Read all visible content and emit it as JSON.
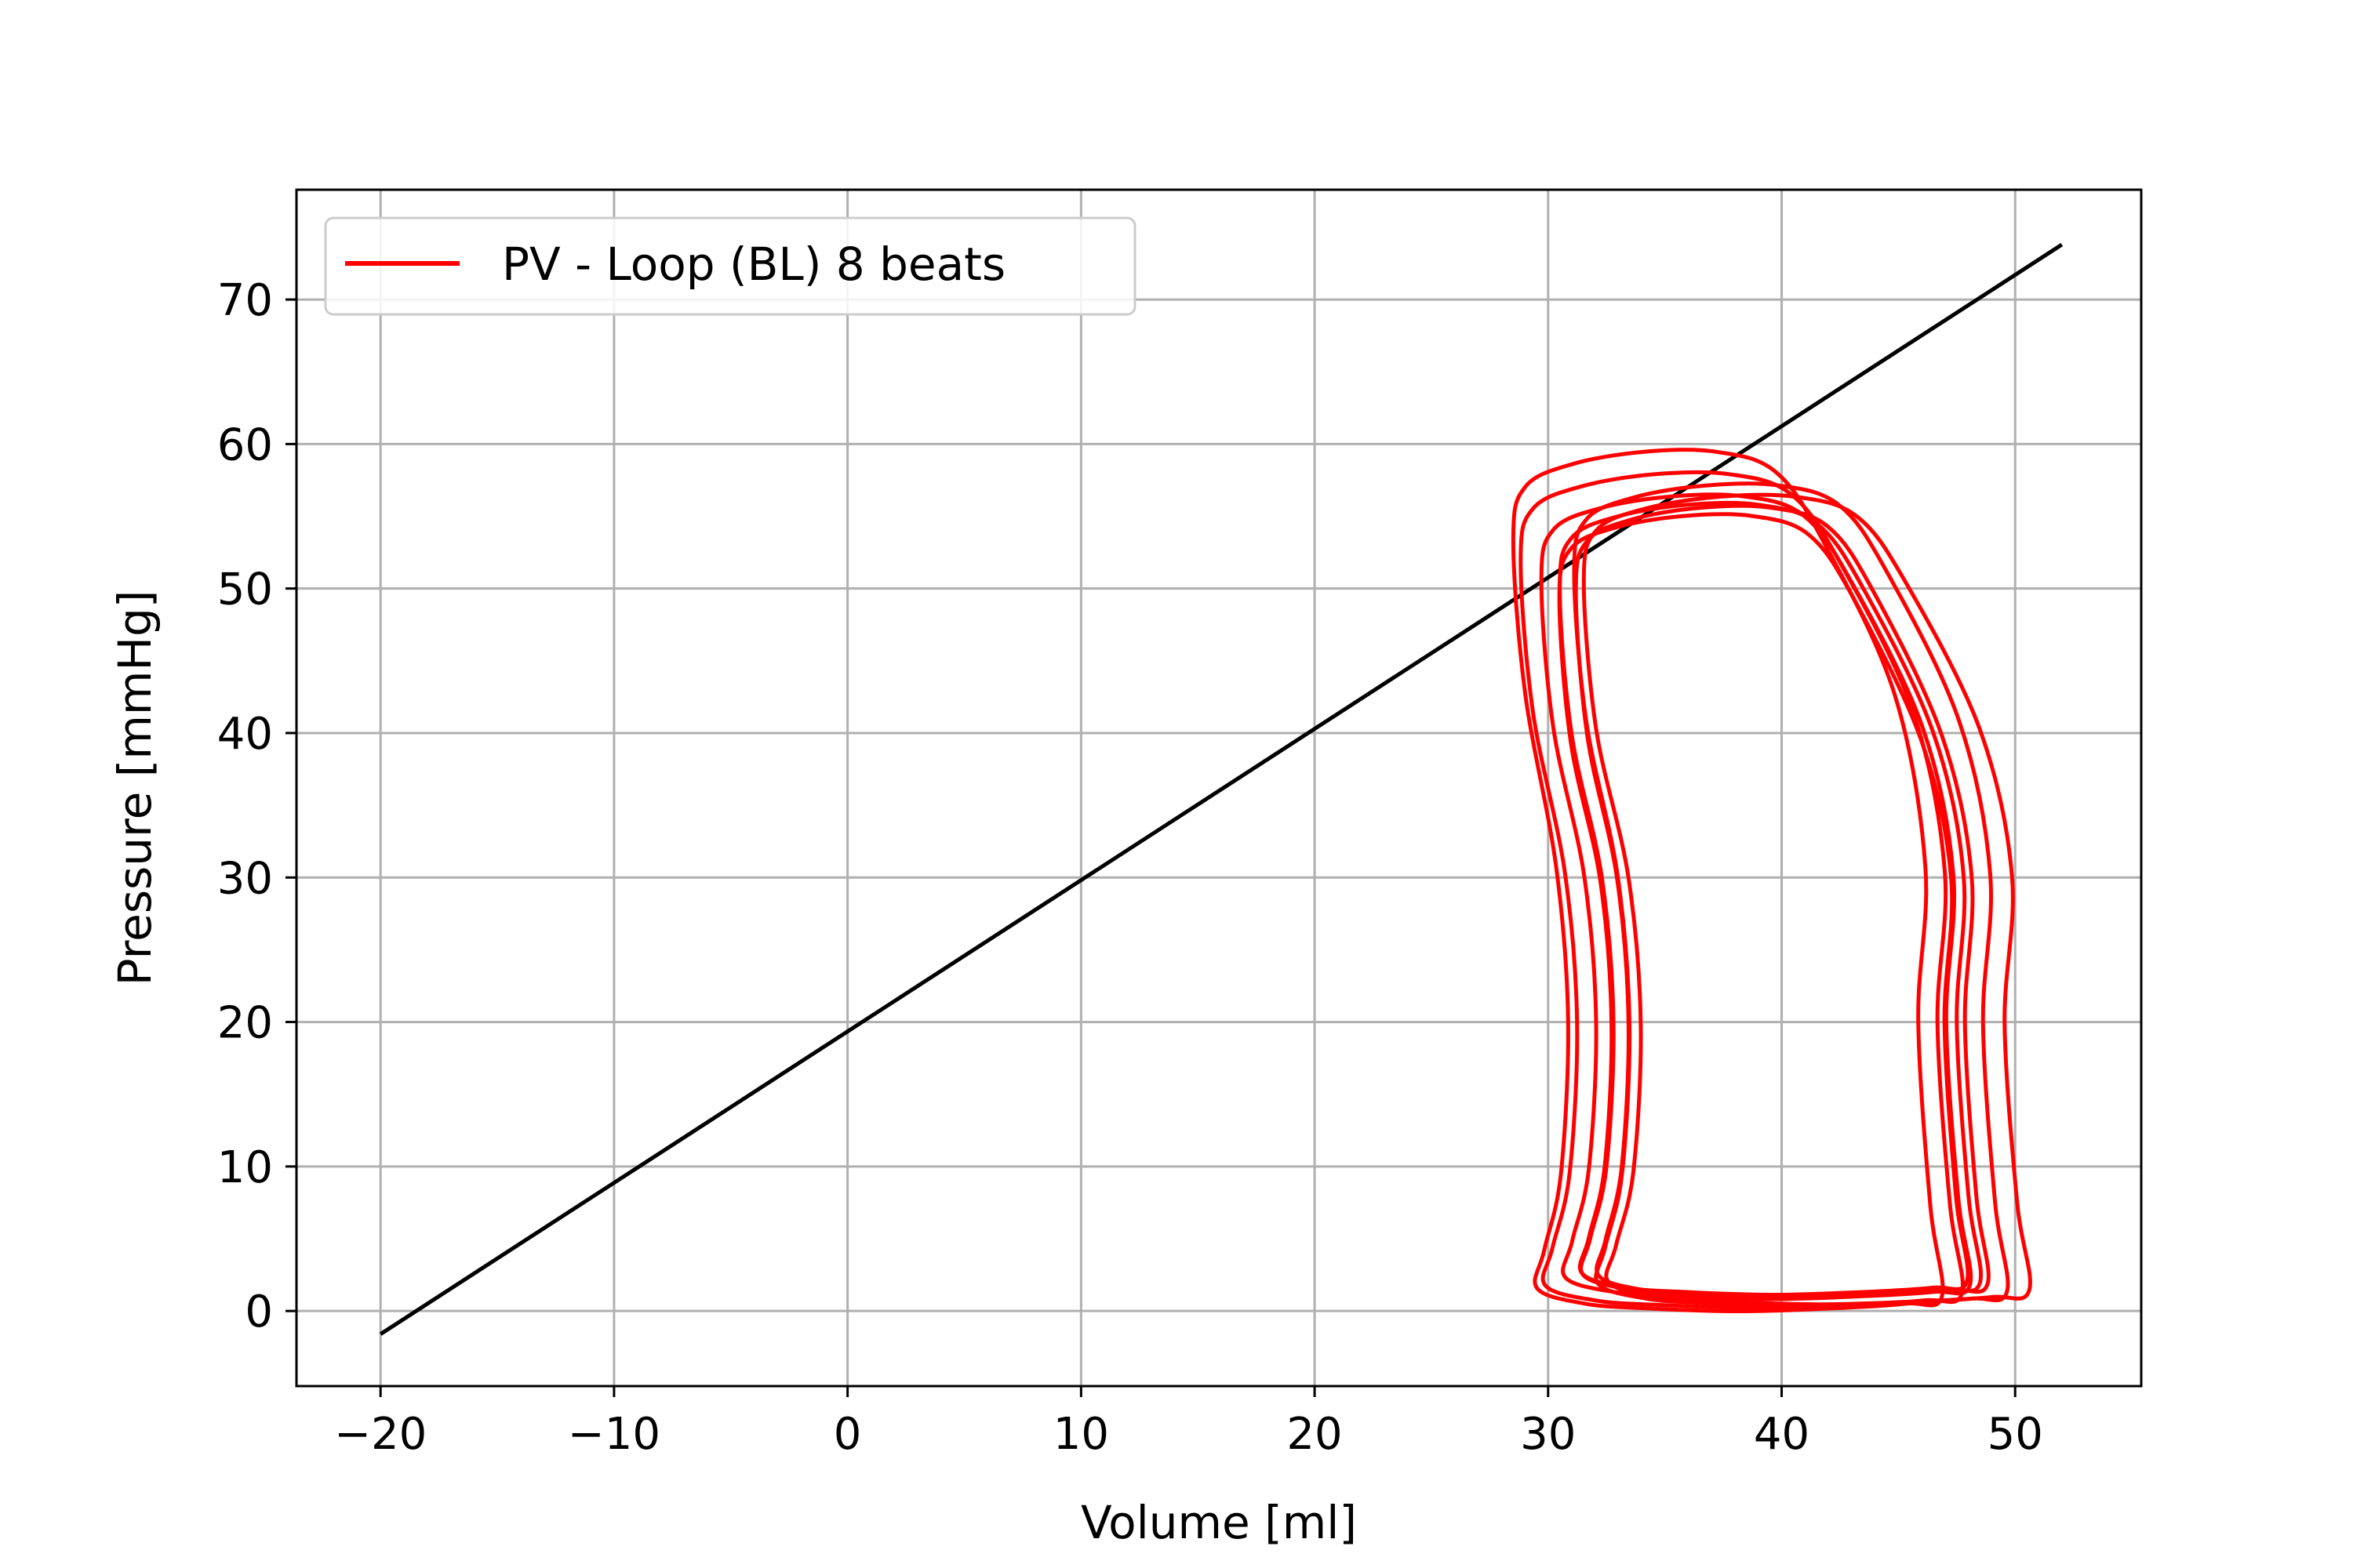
{
  "chart_data": {
    "type": "line",
    "title": "",
    "xlabel": "Volume [ml]",
    "ylabel": "Pressure [mmHg]",
    "xlim": [
      -23.6,
      55.4
    ],
    "ylim": [
      -5.2,
      77.6
    ],
    "xticks": [
      -20,
      -10,
      0,
      10,
      20,
      30,
      40,
      50
    ],
    "xtick_labels": [
      "−20",
      "−10",
      "0",
      "10",
      "20",
      "30",
      "40",
      "50"
    ],
    "yticks": [
      0,
      10,
      20,
      30,
      40,
      50,
      60,
      70
    ],
    "ytick_labels": [
      "0",
      "10",
      "20",
      "30",
      "40",
      "50",
      "60",
      "70"
    ],
    "grid": true,
    "legend": {
      "position": "top-left",
      "entries": [
        "PV - Loop (BL) 8 beats"
      ]
    },
    "series": [
      {
        "name": "PV - Loop (BL) 8 beats",
        "color": "#ff0000",
        "style": "loop",
        "beats": 8,
        "approx_loop_bounds": {
          "v_min": 29,
          "v_max": 51.5,
          "p_min": -1,
          "p_max": 59
        },
        "representative_loop": [
          [
            31.5,
            2.5
          ],
          [
            33.5,
            1.5
          ],
          [
            36,
            1.2
          ],
          [
            40,
            1.0
          ],
          [
            44,
            1.2
          ],
          [
            47,
            1.5
          ],
          [
            48.5,
            2.0
          ],
          [
            48.0,
            8
          ],
          [
            47.5,
            20
          ],
          [
            47.8,
            30
          ],
          [
            46.5,
            40
          ],
          [
            43.5,
            50
          ],
          [
            41.5,
            54.5
          ],
          [
            39,
            55.8
          ],
          [
            36,
            55.8
          ],
          [
            33,
            55.0
          ],
          [
            31,
            53.5
          ],
          [
            30.5,
            50
          ],
          [
            31,
            40
          ],
          [
            32.3,
            30
          ],
          [
            32.8,
            20
          ],
          [
            32.5,
            10
          ],
          [
            31.8,
            5
          ],
          [
            31.5,
            2.5
          ]
        ]
      },
      {
        "name": "",
        "color": "#000000",
        "style": "line",
        "x": [
          -20,
          52
        ],
        "y": [
          -1.6,
          73.8
        ]
      }
    ]
  }
}
